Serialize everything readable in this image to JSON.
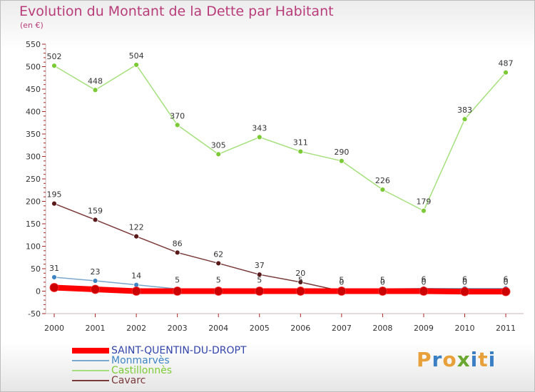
{
  "title": "Evolution du Montant de la Dette par Habitant",
  "subtitle": "(en €)",
  "logo": {
    "letters": [
      "P",
      "r",
      "o",
      "x",
      "i",
      "t",
      "i"
    ],
    "colors": [
      "#e8a13a",
      "#3a7fc4",
      "#e8a13a",
      "#6aa832",
      "#3a7fc4",
      "#e8a13a",
      "#3a7fc4"
    ]
  },
  "chart_data": {
    "type": "line",
    "categories": [
      "2000",
      "2001",
      "2002",
      "2003",
      "2004",
      "2005",
      "2006",
      "2007",
      "2008",
      "2009",
      "2010",
      "2011"
    ],
    "ylim": [
      -50,
      550
    ],
    "yticks": [
      -50,
      0,
      50,
      100,
      150,
      200,
      250,
      300,
      350,
      400,
      450,
      500,
      550
    ],
    "grid": false,
    "legend_position": "bottom-left",
    "series": [
      {
        "name": "SAINT-QUENTIN-DU-DROPT",
        "color": "#ff0000",
        "marker": "#cc0000",
        "width": 8,
        "values": [
          8,
          4,
          0,
          0,
          0,
          0,
          0,
          0,
          0,
          0,
          -1,
          -1
        ],
        "labels": []
      },
      {
        "name": "Monmarvès",
        "color": "#7ba7cc",
        "marker": "#3f85c5",
        "width": 1.5,
        "values": [
          31,
          23,
          14,
          5,
          5,
          5,
          5,
          5,
          5,
          6,
          6,
          6
        ],
        "labels": [
          "31",
          "23",
          "14",
          "5",
          "5",
          "5",
          "5",
          "5",
          "5",
          "6",
          "6",
          "6"
        ]
      },
      {
        "name": "Castillonnès",
        "color": "#a5e07c",
        "marker": "#7ccb36",
        "width": 1.5,
        "values": [
          502,
          448,
          504,
          370,
          305,
          343,
          311,
          290,
          226,
          179,
          383,
          487
        ],
        "labels": [
          "502",
          "448",
          "504",
          "370",
          "305",
          "343",
          "311",
          "290",
          "226",
          "179",
          "383",
          "487"
        ]
      },
      {
        "name": "Cavarc",
        "color": "#7a3a3a",
        "marker": "#5a1a1a",
        "width": 1.5,
        "values": [
          195,
          159,
          122,
          86,
          62,
          37,
          20,
          0,
          0,
          0,
          0,
          0
        ],
        "labels": [
          "195",
          "159",
          "122",
          "86",
          "62",
          "37",
          "20",
          "0",
          "0",
          "0",
          "0",
          "0"
        ]
      }
    ]
  }
}
